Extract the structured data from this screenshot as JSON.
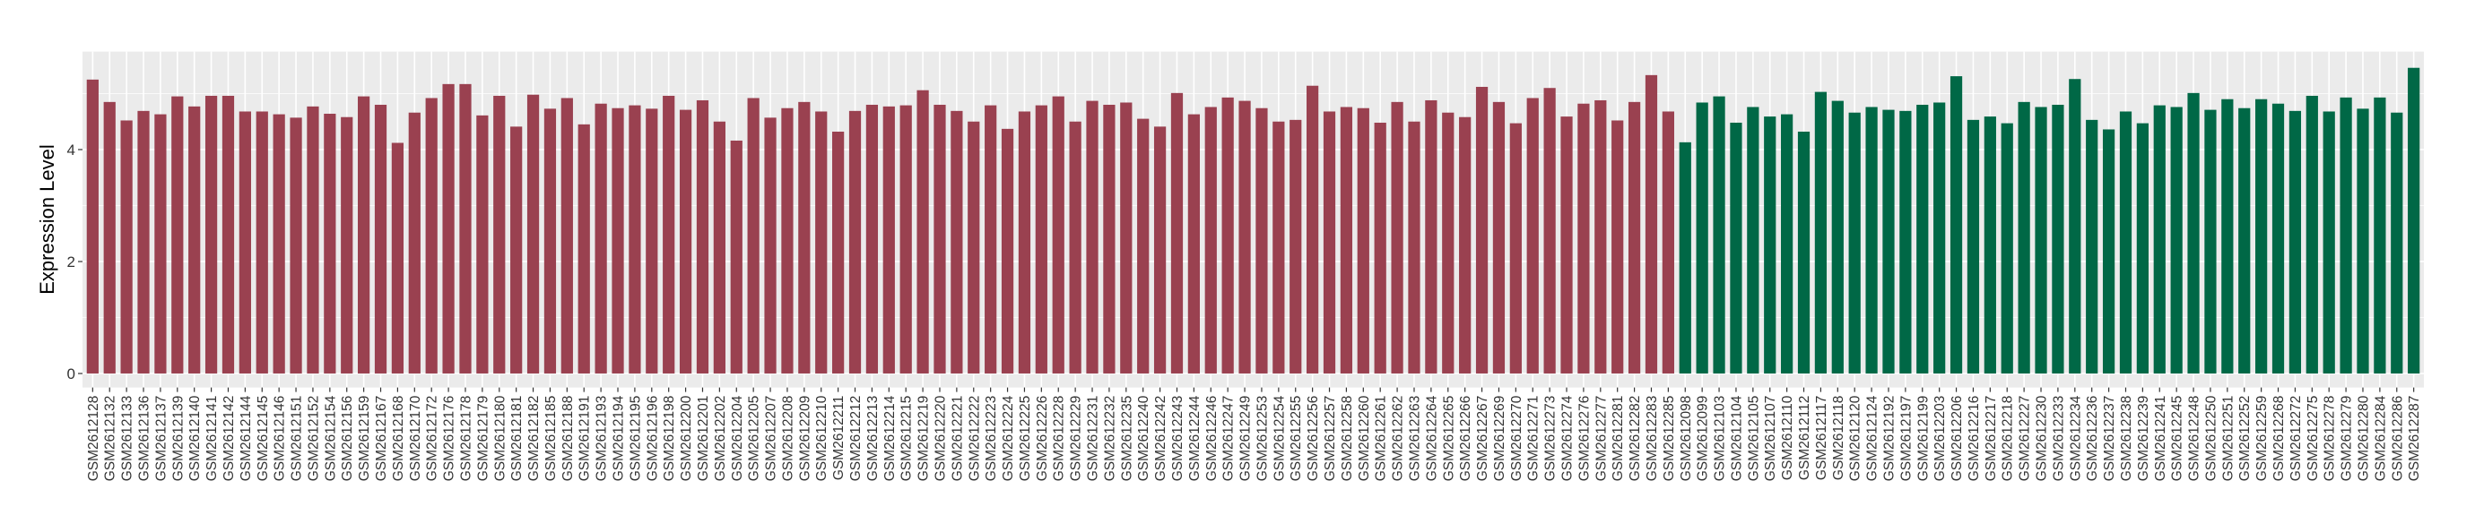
{
  "chart_data": {
    "type": "bar",
    "title": "",
    "xlabel": "",
    "ylabel": "Expression Level",
    "ylim": [
      -0.25,
      5.75
    ],
    "yticks": [
      0,
      2,
      4
    ],
    "grid": true,
    "legend": "none",
    "colors": {
      "group1": "#9A4150",
      "group2": "#006846",
      "panel": "#EBEBEB",
      "grid": "#FFFFFF"
    },
    "categories": [
      "GSM2612128",
      "GSM2612132",
      "GSM2612133",
      "GSM2612136",
      "GSM2612137",
      "GSM2612139",
      "GSM2612140",
      "GSM2612141",
      "GSM2612142",
      "GSM2612144",
      "GSM2612145",
      "GSM2612146",
      "GSM2612151",
      "GSM2612152",
      "GSM2612154",
      "GSM2612156",
      "GSM2612159",
      "GSM2612167",
      "GSM2612168",
      "GSM2612170",
      "GSM2612172",
      "GSM2612176",
      "GSM2612178",
      "GSM2612179",
      "GSM2612180",
      "GSM2612181",
      "GSM2612182",
      "GSM2612185",
      "GSM2612188",
      "GSM2612191",
      "GSM2612193",
      "GSM2612194",
      "GSM2612195",
      "GSM2612196",
      "GSM2612198",
      "GSM2612200",
      "GSM2612201",
      "GSM2612202",
      "GSM2612204",
      "GSM2612205",
      "GSM2612207",
      "GSM2612208",
      "GSM2612209",
      "GSM2612210",
      "GSM2612211",
      "GSM2612212",
      "GSM2612213",
      "GSM2612214",
      "GSM2612215",
      "GSM2612219",
      "GSM2612220",
      "GSM2612221",
      "GSM2612222",
      "GSM2612223",
      "GSM2612224",
      "GSM2612225",
      "GSM2612226",
      "GSM2612228",
      "GSM2612229",
      "GSM2612231",
      "GSM2612232",
      "GSM2612235",
      "GSM2612240",
      "GSM2612242",
      "GSM2612243",
      "GSM2612244",
      "GSM2612246",
      "GSM2612247",
      "GSM2612249",
      "GSM2612253",
      "GSM2612254",
      "GSM2612255",
      "GSM2612256",
      "GSM2612257",
      "GSM2612258",
      "GSM2612260",
      "GSM2612261",
      "GSM2612262",
      "GSM2612263",
      "GSM2612264",
      "GSM2612265",
      "GSM2612266",
      "GSM2612267",
      "GSM2612269",
      "GSM2612270",
      "GSM2612271",
      "GSM2612273",
      "GSM2612274",
      "GSM2612276",
      "GSM2612277",
      "GSM2612281",
      "GSM2612282",
      "GSM2612283",
      "GSM2612285",
      "GSM2612098",
      "GSM2612099",
      "GSM2612103",
      "GSM2612104",
      "GSM2612105",
      "GSM2612107",
      "GSM2612110",
      "GSM2612112",
      "GSM2612117",
      "GSM2612118",
      "GSM2612120",
      "GSM2612124",
      "GSM2612192",
      "GSM2612197",
      "GSM2612199",
      "GSM2612203",
      "GSM2612206",
      "GSM2612216",
      "GSM2612217",
      "GSM2612218",
      "GSM2612227",
      "GSM2612230",
      "GSM2612233",
      "GSM2612234",
      "GSM2612236",
      "GSM2612237",
      "GSM2612238",
      "GSM2612239",
      "GSM2612241",
      "GSM2612245",
      "GSM2612248",
      "GSM2612250",
      "GSM2612251",
      "GSM2612252",
      "GSM2612259",
      "GSM2612268",
      "GSM2612272",
      "GSM2612275",
      "GSM2612278",
      "GSM2612279",
      "GSM2612280",
      "GSM2612284",
      "GSM2612286",
      "GSM2612287"
    ],
    "values": [
      5.25,
      4.85,
      4.52,
      4.69,
      4.63,
      4.95,
      4.77,
      4.96,
      4.96,
      4.68,
      4.68,
      4.63,
      4.57,
      4.77,
      4.64,
      4.58,
      4.95,
      4.8,
      4.12,
      4.66,
      4.92,
      5.17,
      5.17,
      4.61,
      4.96,
      4.41,
      4.98,
      4.73,
      4.92,
      4.45,
      4.82,
      4.74,
      4.79,
      4.73,
      4.96,
      4.71,
      4.88,
      4.5,
      4.16,
      4.92,
      4.57,
      4.74,
      4.85,
      4.68,
      4.32,
      4.69,
      4.8,
      4.77,
      4.79,
      5.06,
      4.8,
      4.69,
      4.5,
      4.79,
      4.37,
      4.68,
      4.79,
      4.95,
      4.5,
      4.87,
      4.8,
      4.84,
      4.55,
      4.41,
      5.01,
      4.63,
      4.76,
      4.93,
      4.87,
      4.74,
      4.5,
      4.53,
      5.14,
      4.68,
      4.76,
      4.74,
      4.48,
      4.85,
      4.5,
      4.88,
      4.66,
      4.58,
      5.12,
      4.85,
      4.47,
      4.92,
      5.1,
      4.59,
      4.82,
      4.88,
      4.52,
      4.85,
      5.33,
      4.68,
      4.13,
      4.84,
      4.95,
      4.48,
      4.76,
      4.59,
      4.63,
      4.32,
      5.03,
      4.87,
      4.66,
      4.76,
      4.71,
      4.69,
      4.8,
      4.84,
      5.31,
      4.53,
      4.59,
      4.47,
      4.85,
      4.76,
      4.8,
      5.26,
      4.53,
      4.36,
      4.68,
      4.47,
      4.79,
      4.76,
      5.01,
      4.71,
      4.9,
      4.74,
      4.9,
      4.82,
      4.69,
      4.96,
      4.68,
      4.93,
      4.73,
      4.93,
      4.66,
      5.46
    ],
    "groups_count": {
      "group1": 94,
      "group2": 44
    }
  }
}
